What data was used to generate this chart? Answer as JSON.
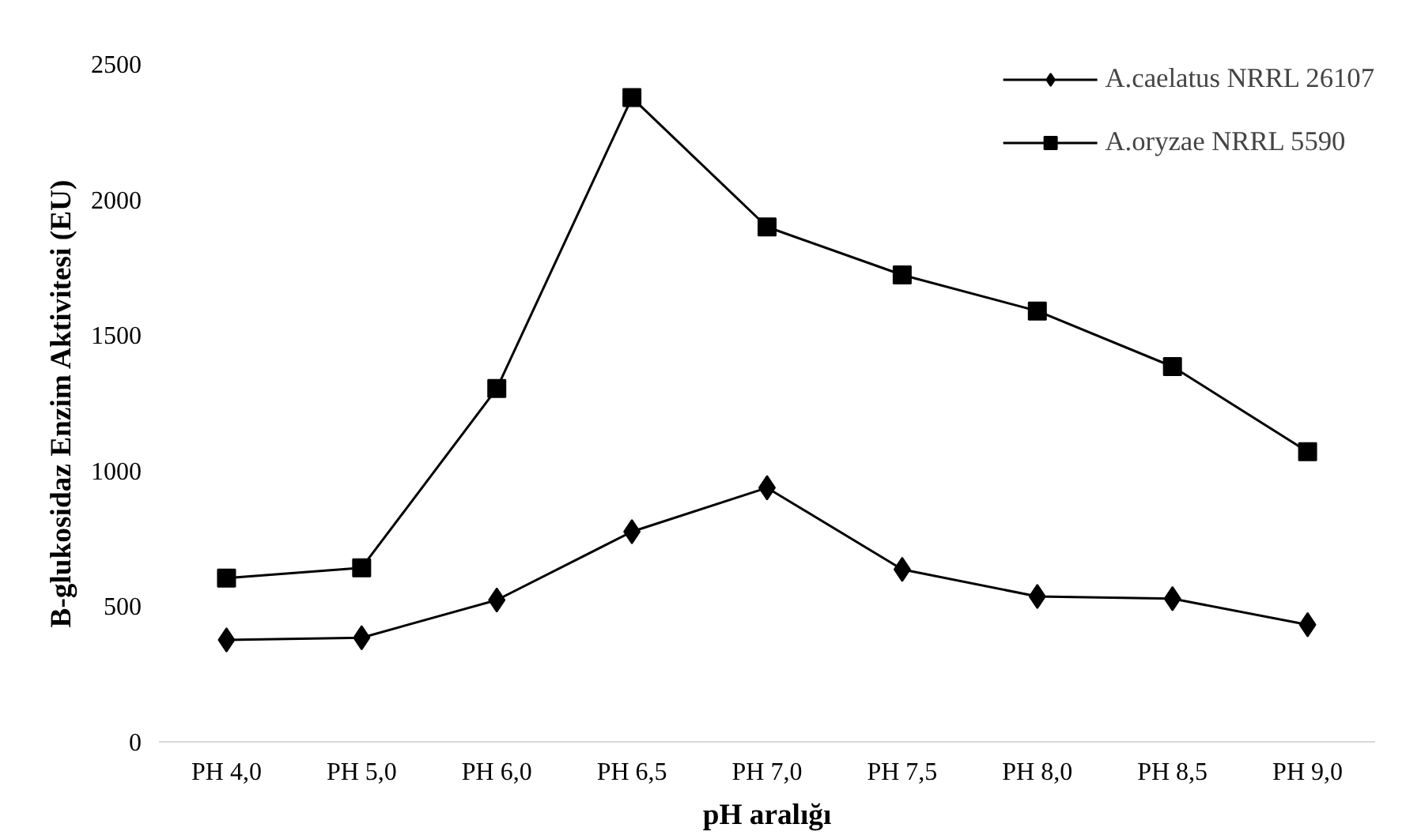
{
  "chart_data": {
    "type": "line",
    "xlabel": "pH aralığı",
    "ylabel": "B-glukosidaz Enzim Aktivitesi (EU)",
    "categories": [
      "PH 4,0",
      "PH 5,0",
      "PH 6,0",
      "PH 6,5",
      "PH 7,0",
      "PH 7,5",
      "PH 8,0",
      "PH 8,5",
      "PH 9,0"
    ],
    "series": [
      {
        "name": "A.caelatus NRRL 26107",
        "color": "#000000",
        "marker": "diamond",
        "values": [
          376,
          384,
          523,
          775,
          937,
          636,
          536,
          528,
          432
        ]
      },
      {
        "name": "A.oryzae NRRL 5590",
        "color": "#000000",
        "marker": "square",
        "values": [
          604,
          642,
          1303,
          2376,
          1899,
          1722,
          1589,
          1384,
          1070
        ]
      }
    ],
    "ylim": [
      0,
      2500
    ],
    "yticks": [
      0,
      500,
      1000,
      1500,
      2000,
      2500
    ],
    "grid": false,
    "legend": "top right",
    "line_style": "solid"
  }
}
